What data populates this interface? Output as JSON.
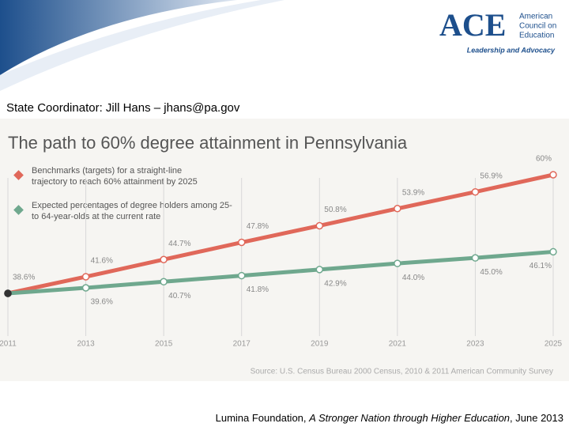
{
  "header": {
    "logo": "ACE",
    "org": [
      "American",
      "Council on",
      "Education"
    ],
    "tagline": "Leadership and Advocacy",
    "coordinator": "State Coordinator:  Jill Hans – jhans@pa.gov"
  },
  "chart_data": {
    "type": "line",
    "title": "The path to 60% degree attainment in Pennsylvania",
    "x": [
      2011,
      2013,
      2015,
      2017,
      2019,
      2021,
      2023,
      2025
    ],
    "xlim": [
      2011,
      2025
    ],
    "xticks": [
      2011,
      2013,
      2015,
      2017,
      2019,
      2021,
      2023,
      2025
    ],
    "grid": true,
    "series": [
      {
        "name": "Benchmarks (targets) for a straight-line trajectory to reach 60% attainment by 2025",
        "color": "#e0685a",
        "values": [
          38.6,
          41.6,
          44.7,
          47.8,
          50.8,
          53.9,
          56.9,
          60
        ],
        "value_labels": [
          "38.6%",
          "41.6%",
          "44.7%",
          "47.8%",
          "50.8%",
          "53.9%",
          "56.9%",
          "60%"
        ]
      },
      {
        "name": "Expected percentages of degree holders among 25- to 64-year-olds at the current rate",
        "color": "#6fa88e",
        "values": [
          38.6,
          39.6,
          40.7,
          41.8,
          42.9,
          44.0,
          45.0,
          46.1
        ],
        "value_labels": [
          null,
          "39.6%",
          "40.7%",
          "41.8%",
          "42.9%",
          "44.0%",
          "45.0%",
          "46.1%"
        ]
      }
    ],
    "source": "Source: U.S. Census Bureau 2000 Census, 2010 & 2011 American Community Survey"
  },
  "footer": {
    "before": "Lumina Foundation, ",
    "italic": "A Stronger Nation through Higher Education",
    "after": ", June 2013"
  }
}
